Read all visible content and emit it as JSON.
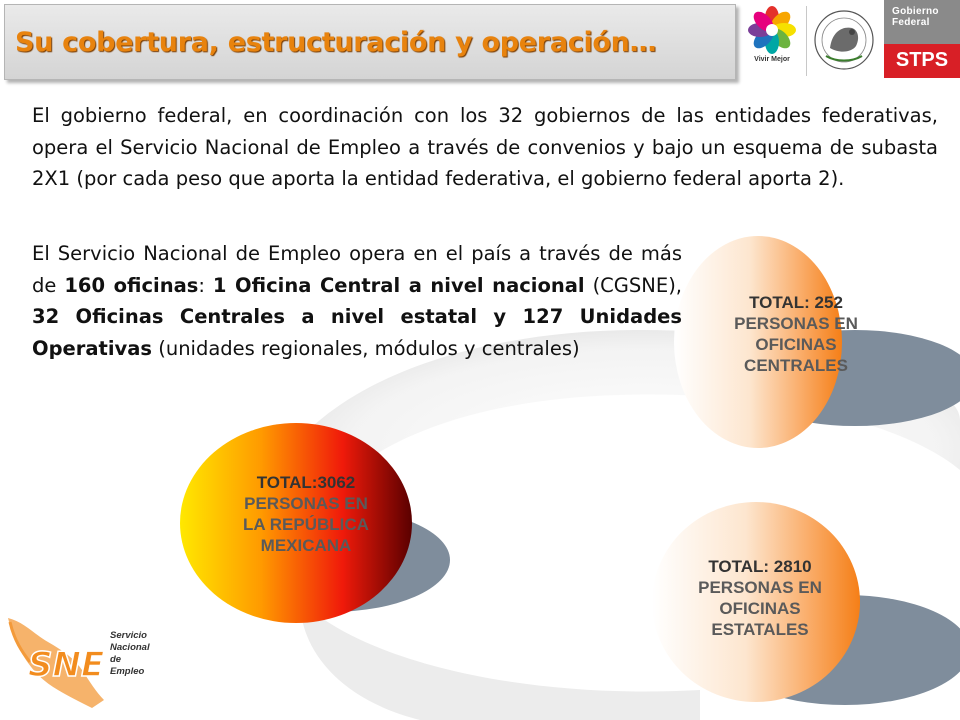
{
  "header": {
    "title": "Su cobertura, estructuración y operación…",
    "logos": {
      "vivir_mejor_caption": "Vivir Mejor",
      "gobierno_federal": "Gobierno Federal",
      "stps": "STPS"
    }
  },
  "body": {
    "paragraph1": "El gobierno federal, en coordinación con los 32 gobiernos de las entidades federativas, opera el Servicio Nacional de Empleo a través de convenios y bajo un esquema de subasta 2X1 (por cada peso que aporta la entidad federativa, el gobierno federal aporta 2).",
    "paragraph2": {
      "t1": "El Servicio Nacional de Empleo opera en el país a través de más de ",
      "b1": "160 oficinas",
      "t2": ": ",
      "b2": "1 Oficina Central a nivel nacional",
      "t3": " (CGSNE), ",
      "b3": "32 Oficinas Centrales a nivel estatal y 127 Unidades Operativas",
      "t4": " (unidades regionales, módulos y centrales)"
    }
  },
  "circles": {
    "national": {
      "total": "TOTAL:3062",
      "line1": "PERSONAS EN",
      "line2": "LA REPÚBLICA",
      "line3": "MEXICANA"
    },
    "central": {
      "total": "TOTAL: 252",
      "line1": "PERSONAS EN",
      "line2": "OFICINAS",
      "line3": "CENTRALES"
    },
    "state": {
      "total": "TOTAL: 2810",
      "line1": "PERSONAS EN",
      "line2": "OFICINAS",
      "line3": "ESTATALES"
    }
  },
  "footer_logo": {
    "acronym": "SNE",
    "line1": "Servicio",
    "line2": "Nacional",
    "line3": "de Empleo"
  },
  "colors": {
    "title_orange": "#e8830e",
    "stps_red": "#d81f26",
    "gob_gray": "#8a8a8a",
    "shadow_slate": "#7f8d9c"
  }
}
